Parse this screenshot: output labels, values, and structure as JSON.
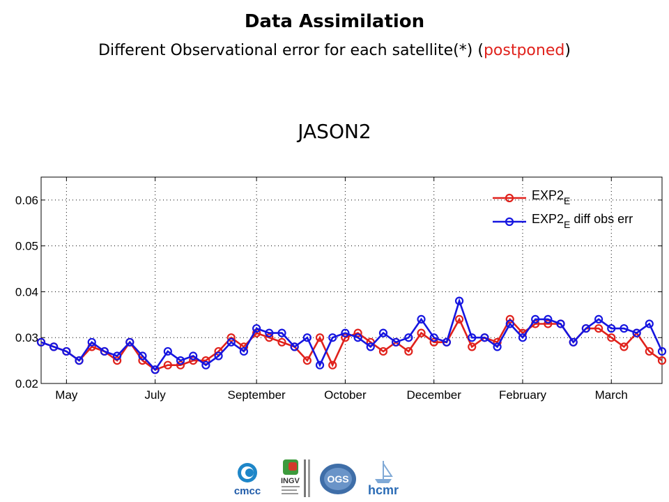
{
  "header": {
    "title": "Data Assimilation",
    "subtitle_prefix": "Different Observational error for each satellite(*) (",
    "subtitle_highlight": "postponed",
    "subtitle_suffix": ")",
    "highlight_color": "#e0211b"
  },
  "chart_data": {
    "type": "line",
    "title": "JASON2",
    "xlabel": "",
    "ylabel": "",
    "ylim": [
      0.02,
      0.065
    ],
    "yticks": [
      0.02,
      0.03,
      0.04,
      0.05,
      0.06
    ],
    "ytick_labels": [
      "0.02",
      "0.03",
      "0.04",
      "0.05",
      "0.06"
    ],
    "x_tick_labels": [
      "May",
      "July",
      "September",
      "October",
      "December",
      "February",
      "March"
    ],
    "x_tick_index": [
      2,
      9,
      17,
      24,
      31,
      38,
      45
    ],
    "grid": true,
    "legend_position": "top-right",
    "series": [
      {
        "name": "EXP2_E",
        "name_main": "EXP2",
        "name_sub": "E",
        "name_tail": "",
        "color": "#e0211b",
        "values": [
          0.029,
          0.028,
          0.027,
          0.025,
          0.028,
          0.027,
          0.025,
          0.029,
          0.025,
          0.023,
          0.024,
          0.024,
          0.025,
          0.025,
          0.027,
          0.03,
          0.028,
          0.031,
          0.03,
          0.029,
          0.028,
          0.025,
          0.03,
          0.024,
          0.03,
          0.031,
          0.029,
          0.027,
          0.029,
          0.027,
          0.031,
          0.029,
          0.029,
          0.034,
          0.028,
          0.03,
          0.029,
          0.034,
          0.031,
          0.033,
          0.033,
          0.033,
          0.029,
          0.032,
          0.032,
          0.03,
          0.028,
          0.031,
          0.027,
          0.025
        ]
      },
      {
        "name": "EXP2_E diff obs err",
        "name_main": "EXP2",
        "name_sub": "E",
        "name_tail": " diff obs err",
        "color": "#1515e0",
        "values": [
          0.029,
          0.028,
          0.027,
          0.025,
          0.029,
          0.027,
          0.026,
          0.029,
          0.026,
          0.023,
          0.027,
          0.025,
          0.026,
          0.024,
          0.026,
          0.029,
          0.027,
          0.032,
          0.031,
          0.031,
          0.028,
          0.03,
          0.024,
          0.03,
          0.031,
          0.03,
          0.028,
          0.031,
          0.029,
          0.03,
          0.034,
          0.03,
          0.029,
          0.038,
          0.03,
          0.03,
          0.028,
          0.033,
          0.03,
          0.034,
          0.034,
          0.033,
          0.029,
          0.032,
          0.034,
          0.032,
          0.032,
          0.031,
          0.033,
          0.027
        ]
      }
    ]
  },
  "logos": [
    {
      "name": "cmcc",
      "text": "cmcc"
    },
    {
      "name": "ingv",
      "text": "INGV"
    },
    {
      "name": "ogs",
      "text": "OGS"
    },
    {
      "name": "hcmr",
      "text": "hcmr"
    }
  ]
}
